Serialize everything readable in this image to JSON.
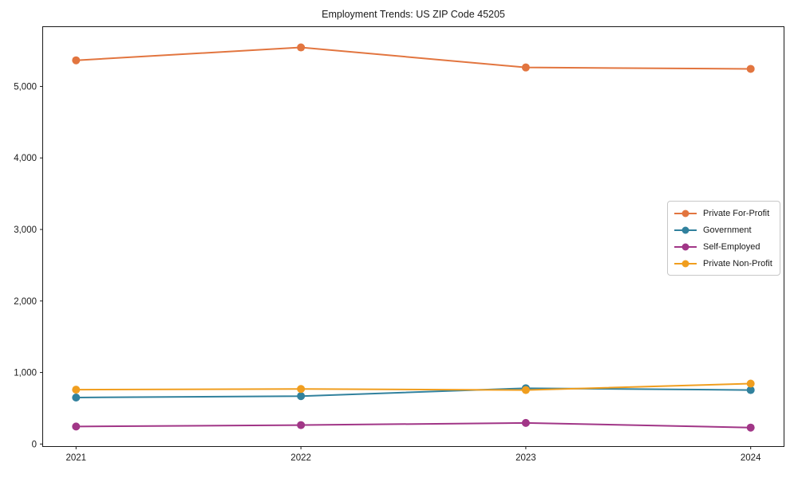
{
  "chart_data": {
    "type": "line",
    "title": "Employment Trends: US ZIP Code 45205",
    "x": [
      "2021",
      "2022",
      "2023",
      "2024"
    ],
    "series": [
      {
        "name": "Private For-Profit",
        "color": "#e2753f",
        "values": [
          5365,
          5545,
          5265,
          5245
        ]
      },
      {
        "name": "Government",
        "color": "#31819d",
        "values": [
          650,
          670,
          780,
          755
        ]
      },
      {
        "name": "Self-Employed",
        "color": "#a13687",
        "values": [
          245,
          265,
          295,
          230
        ]
      },
      {
        "name": "Private Non-Profit",
        "color": "#f09e1f",
        "values": [
          760,
          770,
          755,
          845
        ]
      }
    ],
    "xlabel": "",
    "ylabel": "",
    "ylim": [
      -35,
      5835
    ],
    "yticks": [
      0,
      1000,
      2000,
      3000,
      4000,
      5000
    ],
    "ytick_labels": [
      "0",
      "1,000",
      "2,000",
      "3,000",
      "4,000",
      "5,000"
    ],
    "grid": false,
    "legend_position": "center right",
    "frame_color": "#1a1a1a",
    "marker": "circle",
    "line_width": 2,
    "marker_radius": 5
  }
}
